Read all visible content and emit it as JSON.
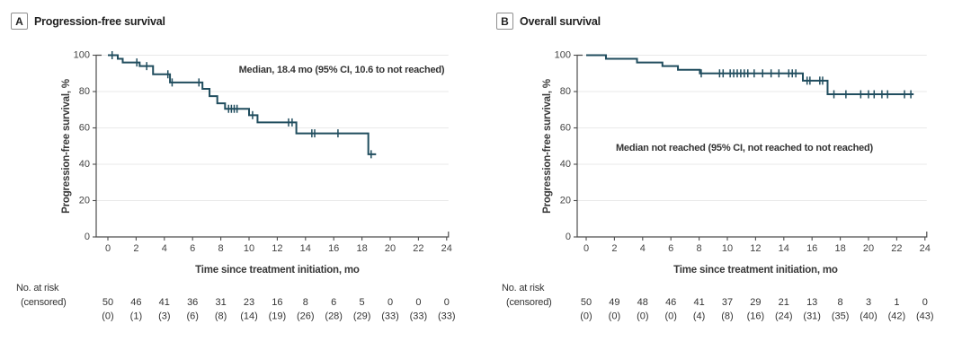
{
  "figure": {
    "background": "#ffffff",
    "curve_color": "#204d5e",
    "axis_color": "#4d4d4d",
    "grid_color": "#e9e9e9",
    "text_color": "#383838",
    "tick_label_color": "#444444"
  },
  "chart_data": [
    {
      "type": "line",
      "panel_label": "A",
      "title": "Progression-free survival",
      "xlabel": "Time since treatment initiation, mo",
      "ylabel": "Progression-free survival, %",
      "annotation": "Median, 18.4 mo (95% CI, 10.6 to not reached)",
      "xlim": [
        0,
        24
      ],
      "ylim": [
        0,
        100
      ],
      "x_ticks": [
        0,
        2,
        4,
        6,
        8,
        10,
        12,
        14,
        16,
        18,
        20,
        22,
        24
      ],
      "y_ticks": [
        0,
        20,
        40,
        60,
        80,
        100
      ],
      "series": [
        {
          "name": "Progression-free survival",
          "start_pct": 100,
          "drops": [
            {
              "t": 0.7,
              "to": 98
            },
            {
              "t": 1.05,
              "to": 96
            },
            {
              "t": 2.25,
              "to": 94
            },
            {
              "t": 3.2,
              "to": 89.5
            },
            {
              "t": 4.4,
              "to": 85
            },
            {
              "t": 6.7,
              "to": 81.5
            },
            {
              "t": 7.2,
              "to": 77.5
            },
            {
              "t": 7.75,
              "to": 73.5
            },
            {
              "t": 8.3,
              "to": 70.5
            },
            {
              "t": 10.0,
              "to": 67
            },
            {
              "t": 10.6,
              "to": 63
            },
            {
              "t": 13.35,
              "to": 57
            },
            {
              "t": 18.45,
              "to": 45.5
            }
          ],
          "end_t": 19.0,
          "censors": [
            [
              0.3,
              100
            ],
            [
              2.05,
              96
            ],
            [
              2.75,
              94
            ],
            [
              4.25,
              89.5
            ],
            [
              4.55,
              85
            ],
            [
              6.45,
              85
            ],
            [
              8.55,
              70.5
            ],
            [
              8.75,
              70.5
            ],
            [
              8.95,
              70.5
            ],
            [
              9.15,
              70.5
            ],
            [
              10.25,
              67
            ],
            [
              12.8,
              63
            ],
            [
              13.05,
              63
            ],
            [
              14.45,
              57
            ],
            [
              14.65,
              57
            ],
            [
              16.3,
              57
            ],
            [
              18.65,
              45.5
            ]
          ]
        }
      ],
      "risk_label_line1": "No. at risk",
      "risk_label_line2": "(censored)",
      "at_risk": [
        "50",
        "46",
        "41",
        "36",
        "31",
        "23",
        "16",
        "8",
        "6",
        "5",
        "0",
        "0",
        "0"
      ],
      "censored": [
        "(0)",
        "(1)",
        "(3)",
        "(6)",
        "(8)",
        "(14)",
        "(19)",
        "(26)",
        "(28)",
        "(29)",
        "(33)",
        "(33)",
        "(33)"
      ]
    },
    {
      "type": "line",
      "panel_label": "B",
      "title": "Overall survival",
      "xlabel": "Time since treatment initiation, mo",
      "ylabel": "Progression-free survival, %",
      "annotation": "Median not reached (95% CI, not reached to not reached)",
      "xlim": [
        0,
        24
      ],
      "ylim": [
        0,
        100
      ],
      "x_ticks": [
        0,
        2,
        4,
        6,
        8,
        10,
        12,
        14,
        16,
        18,
        20,
        22,
        24
      ],
      "y_ticks": [
        0,
        20,
        40,
        60,
        80,
        100
      ],
      "series": [
        {
          "name": "Overall survival",
          "start_pct": 100,
          "drops": [
            {
              "t": 1.4,
              "to": 98
            },
            {
              "t": 3.6,
              "to": 96
            },
            {
              "t": 5.4,
              "to": 94
            },
            {
              "t": 6.5,
              "to": 92
            },
            {
              "t": 8.05,
              "to": 90
            },
            {
              "t": 15.35,
              "to": 86
            },
            {
              "t": 17.1,
              "to": 78.5
            }
          ],
          "end_t": 23.2,
          "censors": [
            [
              8.15,
              90
            ],
            [
              9.45,
              90
            ],
            [
              9.7,
              90
            ],
            [
              10.2,
              90
            ],
            [
              10.45,
              90
            ],
            [
              10.7,
              90
            ],
            [
              10.95,
              90
            ],
            [
              11.2,
              90
            ],
            [
              11.45,
              90
            ],
            [
              11.9,
              90
            ],
            [
              12.5,
              90
            ],
            [
              13.1,
              90
            ],
            [
              13.65,
              90
            ],
            [
              14.35,
              90
            ],
            [
              14.6,
              90
            ],
            [
              14.85,
              90
            ],
            [
              15.65,
              86
            ],
            [
              15.85,
              86
            ],
            [
              16.55,
              86
            ],
            [
              16.75,
              86
            ],
            [
              17.55,
              78.5
            ],
            [
              18.4,
              78.5
            ],
            [
              19.45,
              78.5
            ],
            [
              20.0,
              78.5
            ],
            [
              20.4,
              78.5
            ],
            [
              20.95,
              78.5
            ],
            [
              21.35,
              78.5
            ],
            [
              22.55,
              78.5
            ],
            [
              23.0,
              78.5
            ]
          ]
        }
      ],
      "risk_label_line1": "No. at risk",
      "risk_label_line2": "(censored)",
      "at_risk": [
        "50",
        "49",
        "48",
        "46",
        "41",
        "37",
        "29",
        "21",
        "13",
        "8",
        "3",
        "1",
        "0"
      ],
      "censored": [
        "(0)",
        "(0)",
        "(0)",
        "(0)",
        "(4)",
        "(8)",
        "(16)",
        "(24)",
        "(31)",
        "(35)",
        "(40)",
        "(42)",
        "(43)"
      ]
    }
  ]
}
